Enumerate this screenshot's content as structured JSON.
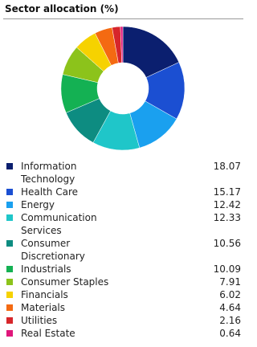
{
  "chart_data": {
    "type": "pie",
    "title": "Sector allocation (%)",
    "donut": true,
    "categories": [
      "Information Technology",
      "Health Care",
      "Energy",
      "Communication Services",
      "Consumer Discretionary",
      "Industrials",
      "Consumer Staples",
      "Financials",
      "Materials",
      "Utilities",
      "Real Estate"
    ],
    "values": [
      18.07,
      15.17,
      12.42,
      12.33,
      10.56,
      10.09,
      7.91,
      6.02,
      4.64,
      2.16,
      0.64
    ],
    "colors": [
      "#0b1f6f",
      "#1b4fd2",
      "#1aa0ef",
      "#1fc6c9",
      "#0d8c81",
      "#14b153",
      "#8cc31b",
      "#f6d200",
      "#f46a12",
      "#d7262b",
      "#e0177b"
    ]
  }
}
